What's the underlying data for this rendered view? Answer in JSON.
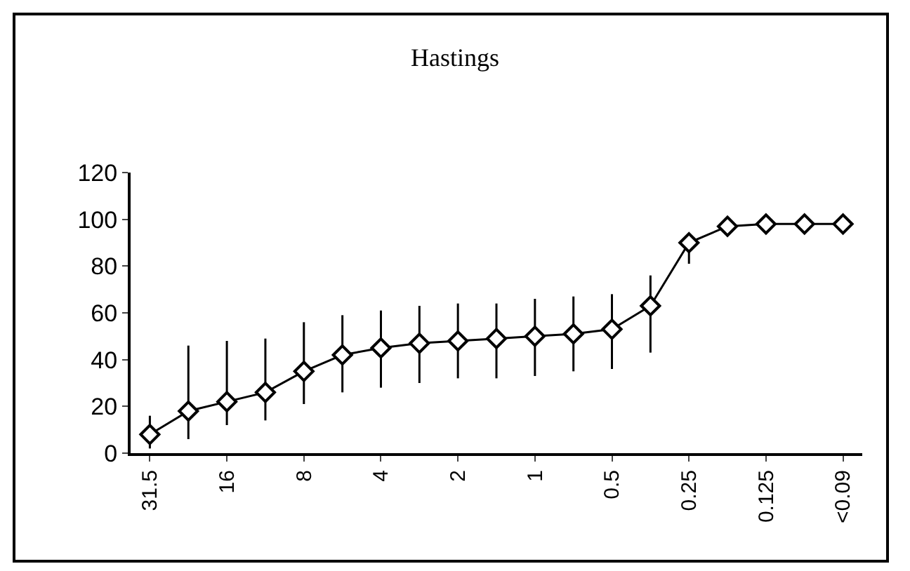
{
  "chart_data": {
    "type": "line",
    "title": "Hastings",
    "categories": [
      "31.5",
      null,
      "16",
      null,
      "8",
      null,
      "4",
      null,
      "2",
      null,
      "1",
      null,
      "0.5",
      null,
      "0.25",
      null,
      "0.125",
      null,
      "<0.09"
    ],
    "series": [
      {
        "color": "#000000",
        "values": [
          8,
          18,
          22,
          26,
          35,
          42,
          45,
          47,
          48,
          49,
          50,
          51,
          53,
          63,
          90,
          97,
          98,
          98,
          98
        ],
        "errors": [
          [
            2,
            16
          ],
          [
            6,
            46
          ],
          [
            12,
            48
          ],
          [
            14,
            49
          ],
          [
            21,
            56
          ],
          [
            26,
            59
          ],
          [
            28,
            61
          ],
          [
            30,
            63
          ],
          [
            32,
            64
          ],
          [
            32,
            64
          ],
          [
            33,
            66
          ],
          [
            35,
            67
          ],
          [
            36,
            68
          ],
          [
            43,
            76
          ],
          [
            81,
            92
          ],
          null,
          null,
          null,
          null
        ]
      }
    ],
    "ylim": [
      0,
      120
    ],
    "yticks": [
      0,
      20,
      40,
      60,
      80,
      100,
      120
    ],
    "legend": false,
    "marker": "diamond",
    "line_style": "solid"
  }
}
